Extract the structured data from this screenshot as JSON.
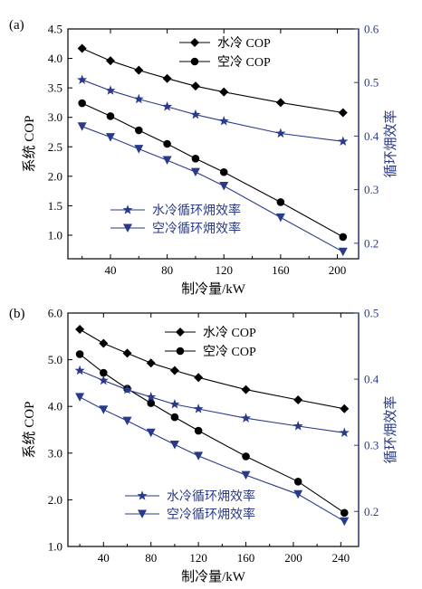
{
  "chart_data": [
    {
      "panel_label": "(a)",
      "type": "line",
      "xlabel": "制冷量/kW",
      "ylabel": "系统 COP",
      "ylabel_right": "循环㶲效率",
      "x_ticks": [
        40,
        80,
        120,
        160,
        200
      ],
      "y_ticks": [
        1.0,
        1.5,
        2.0,
        2.5,
        3.0,
        3.5,
        4.0,
        4.5
      ],
      "y_ticks_labels": [
        "1.0",
        "1.5",
        "2.0",
        "2.5",
        "3.0",
        "3.5",
        "4.0",
        "4.5"
      ],
      "y2_ticks": [
        0.2,
        0.3,
        0.4,
        0.5,
        0.6
      ],
      "y2_ticks_labels": [
        "0.2",
        "0.3",
        "0.4",
        "0.5",
        "0.6"
      ],
      "xlim": [
        10,
        215
      ],
      "ylim": [
        0.6,
        4.5
      ],
      "y2lim": [
        0.171,
        0.6
      ],
      "legend_black": [
        "水冷 COP",
        "空冷 COP"
      ],
      "legend_blue": [
        "水冷循环㶲效率",
        "空冷循环㶲效率"
      ],
      "series": [
        {
          "name": "水冷 COP",
          "axis": "left",
          "marker": "diamond",
          "color": "#000000",
          "x": [
            20,
            40,
            60,
            80,
            100,
            120,
            160,
            204
          ],
          "y": [
            4.17,
            3.96,
            3.8,
            3.66,
            3.53,
            3.43,
            3.25,
            3.08
          ]
        },
        {
          "name": "空冷 COP",
          "axis": "left",
          "marker": "circle",
          "color": "#000000",
          "x": [
            20,
            40,
            60,
            80,
            100,
            120,
            160,
            204
          ],
          "y": [
            3.24,
            3.02,
            2.78,
            2.55,
            2.3,
            2.07,
            1.56,
            0.97
          ]
        },
        {
          "name": "水冷循环㶲效率",
          "axis": "right",
          "marker": "star",
          "color": "#2a3a8a",
          "x": [
            20,
            40,
            60,
            80,
            100,
            120,
            160,
            204
          ],
          "y": [
            0.505,
            0.485,
            0.469,
            0.455,
            0.44,
            0.428,
            0.405,
            0.39
          ]
        },
        {
          "name": "空冷循环㶲效率",
          "axis": "right",
          "marker": "triangle-down",
          "color": "#2a3a8a",
          "x": [
            20,
            40,
            60,
            80,
            100,
            120,
            160,
            204
          ],
          "y": [
            0.418,
            0.398,
            0.376,
            0.355,
            0.333,
            0.307,
            0.248,
            0.184
          ]
        }
      ]
    },
    {
      "panel_label": "(b)",
      "type": "line",
      "xlabel": "制冷量/kW",
      "ylabel": "系统 COP",
      "ylabel_right": "循环㶲效率",
      "x_ticks": [
        40,
        80,
        120,
        160,
        200,
        240
      ],
      "y_ticks": [
        1.0,
        2.0,
        3.0,
        4.0,
        5.0,
        6.0
      ],
      "y_ticks_labels": [
        "1.0",
        "2.0",
        "3.0",
        "4.0",
        "5.0",
        "6.0"
      ],
      "y2_ticks": [
        0.2,
        0.3,
        0.4,
        0.5
      ],
      "y2_ticks_labels": [
        "0.2",
        "0.3",
        "0.4",
        "0.5"
      ],
      "xlim": [
        10,
        255
      ],
      "ylim": [
        1.0,
        6.0
      ],
      "y2lim": [
        0.147,
        0.5
      ],
      "legend_black": [
        "水冷 COP",
        "空冷 COP"
      ],
      "legend_blue": [
        "水冷循环㶲效率",
        "空冷循环㶲效率"
      ],
      "series": [
        {
          "name": "水冷 COP",
          "axis": "left",
          "marker": "diamond",
          "color": "#000000",
          "x": [
            20,
            40,
            60,
            80,
            100,
            120,
            160,
            204,
            243
          ],
          "y": [
            5.65,
            5.35,
            5.14,
            4.93,
            4.77,
            4.62,
            4.36,
            4.14,
            3.95
          ]
        },
        {
          "name": "空冷 COP",
          "axis": "left",
          "marker": "circle",
          "color": "#000000",
          "x": [
            20,
            40,
            60,
            80,
            100,
            120,
            160,
            204,
            243
          ],
          "y": [
            5.12,
            4.72,
            4.38,
            4.07,
            3.77,
            3.48,
            2.93,
            2.39,
            1.72
          ]
        },
        {
          "name": "水冷循环㶲效率",
          "axis": "right",
          "marker": "star",
          "color": "#2a3a8a",
          "x": [
            20,
            40,
            60,
            80,
            100,
            120,
            160,
            204,
            243
          ],
          "y": [
            0.413,
            0.398,
            0.384,
            0.373,
            0.362,
            0.355,
            0.341,
            0.329,
            0.319
          ]
        },
        {
          "name": "空冷循环㶲效率",
          "axis": "right",
          "marker": "triangle-down",
          "color": "#2a3a8a",
          "x": [
            20,
            40,
            60,
            80,
            100,
            120,
            160,
            204,
            243
          ],
          "y": [
            0.373,
            0.354,
            0.337,
            0.319,
            0.301,
            0.284,
            0.255,
            0.226,
            0.185
          ]
        }
      ]
    }
  ]
}
